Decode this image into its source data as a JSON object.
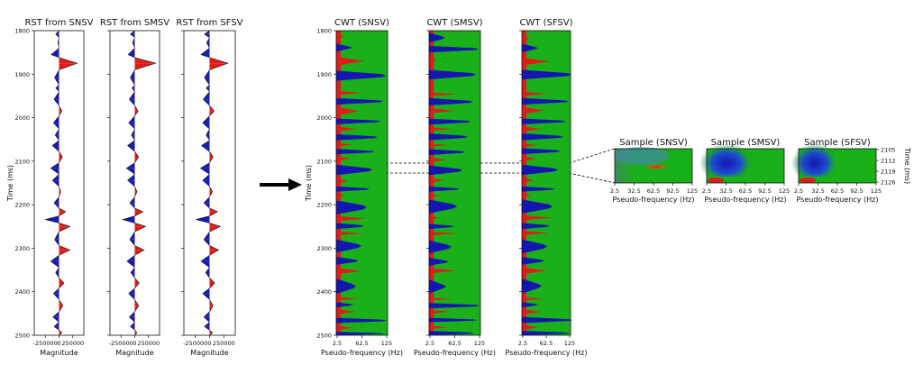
{
  "chart_data": [
    {
      "type": "line",
      "title": "RST from SNSV",
      "xlabel": "Magnitude",
      "ylabel": "Time (ms)",
      "xticks": [
        "-250000",
        "0",
        "250000"
      ],
      "yticks": [
        "1800",
        "1900",
        "2000",
        "2100",
        "2200",
        "2300",
        "2400",
        "2500"
      ],
      "xlim": [
        -450000,
        450000
      ],
      "ylim": [
        2500,
        1800
      ],
      "fill_colors": {
        "positive": "#e01b1b",
        "negative": "#1a1ab8"
      },
      "series": [
        {
          "x": [
            0,
            -60000,
            0,
            -20000,
            0,
            -140000,
            0,
            330000,
            0,
            -80000,
            0,
            -60000,
            0,
            -90000,
            0,
            50000,
            0,
            -100000,
            0,
            -70000,
            0,
            -120000,
            0,
            60000,
            0,
            -150000,
            0,
            -120000,
            0,
            30000,
            0,
            -90000,
            0,
            120000,
            0,
            -250000,
            0,
            200000,
            0,
            -80000,
            0,
            200000,
            0,
            -150000,
            0,
            -60000,
            0,
            90000,
            0,
            -100000,
            0,
            70000,
            0,
            -110000,
            0,
            -90000,
            0,
            50000,
            0
          ],
          "y": [
            1800,
            1808,
            1816,
            1828,
            1840,
            1855,
            1862,
            1875,
            1890,
            1908,
            1925,
            1932,
            1940,
            1958,
            1972,
            1985,
            1996,
            2012,
            2026,
            2040,
            2052,
            2064,
            2078,
            2090,
            2104,
            2116,
            2130,
            2144,
            2158,
            2170,
            2182,
            2196,
            2208,
            2216,
            2226,
            2234,
            2242,
            2250,
            2262,
            2280,
            2294,
            2304,
            2316,
            2330,
            2344,
            2356,
            2368,
            2380,
            2392,
            2404,
            2418,
            2432,
            2446,
            2458,
            2470,
            2480,
            2488,
            2494,
            2500
          ]
        }
      ]
    },
    {
      "type": "line",
      "title": "RST from SMSV",
      "xlabel": "Magnitude",
      "xticks": [
        "-250000",
        "0",
        "250000"
      ],
      "xlim": [
        -450000,
        450000
      ],
      "ylim": [
        2500,
        1800
      ],
      "series": [
        {
          "x": [
            0,
            -80000,
            0,
            -40000,
            0,
            -120000,
            0,
            380000,
            0,
            -80000,
            0,
            -50000,
            0,
            -100000,
            0,
            60000,
            0,
            -110000,
            0,
            -60000,
            0,
            -130000,
            0,
            70000,
            0,
            -150000,
            0,
            -130000,
            0,
            40000,
            0,
            -90000,
            0,
            150000,
            0,
            -220000,
            0,
            200000,
            0,
            -90000,
            0,
            170000,
            0,
            -140000,
            0,
            -70000,
            0,
            80000,
            0,
            -110000,
            0,
            70000,
            0,
            -100000,
            0,
            -80000,
            0,
            40000,
            0
          ],
          "y": [
            1800,
            1808,
            1816,
            1828,
            1840,
            1855,
            1862,
            1875,
            1890,
            1908,
            1925,
            1932,
            1940,
            1958,
            1972,
            1985,
            1996,
            2012,
            2026,
            2040,
            2052,
            2064,
            2078,
            2090,
            2104,
            2116,
            2130,
            2144,
            2158,
            2170,
            2182,
            2196,
            2208,
            2216,
            2226,
            2234,
            2242,
            2250,
            2262,
            2280,
            2294,
            2304,
            2316,
            2330,
            2344,
            2356,
            2368,
            2380,
            2392,
            2404,
            2418,
            2432,
            2446,
            2458,
            2470,
            2480,
            2488,
            2494,
            2500
          ]
        }
      ]
    },
    {
      "type": "line",
      "title": "RST from SFSV",
      "xlabel": "Magnitude",
      "xticks": [
        "-250000",
        "0",
        "250000"
      ],
      "xlim": [
        -450000,
        450000
      ],
      "ylim": [
        2500,
        1800
      ],
      "series": [
        {
          "x": [
            0,
            -90000,
            0,
            -50000,
            0,
            -150000,
            0,
            320000,
            0,
            -90000,
            0,
            -60000,
            0,
            -110000,
            0,
            80000,
            0,
            -120000,
            0,
            -60000,
            0,
            -140000,
            0,
            60000,
            0,
            -160000,
            0,
            -120000,
            0,
            50000,
            0,
            -100000,
            0,
            140000,
            0,
            -240000,
            0,
            190000,
            0,
            -100000,
            0,
            160000,
            0,
            -150000,
            0,
            -70000,
            0,
            90000,
            0,
            -120000,
            0,
            60000,
            0,
            -100000,
            0,
            -90000,
            0,
            50000,
            0
          ],
          "y": [
            1800,
            1808,
            1816,
            1828,
            1840,
            1855,
            1862,
            1875,
            1890,
            1908,
            1925,
            1932,
            1940,
            1958,
            1972,
            1985,
            1996,
            2012,
            2026,
            2040,
            2052,
            2064,
            2078,
            2090,
            2104,
            2116,
            2130,
            2144,
            2158,
            2170,
            2182,
            2196,
            2208,
            2216,
            2226,
            2234,
            2242,
            2250,
            2262,
            2280,
            2294,
            2304,
            2316,
            2330,
            2344,
            2356,
            2368,
            2380,
            2392,
            2404,
            2418,
            2432,
            2446,
            2458,
            2470,
            2480,
            2488,
            2494,
            2500
          ]
        }
      ]
    },
    {
      "type": "heatmap",
      "title": "CWT (SNSV)",
      "xlabel": "Pseudo-frequency (Hz)",
      "ylabel": "Time (ms)",
      "xticks": [
        "2.5",
        "62.5",
        "125"
      ],
      "yticks": [
        "1800",
        "1900",
        "2000",
        "2100",
        "2200",
        "2300",
        "2400",
        "2500"
      ],
      "colormap": [
        "#1515b0",
        "#19b019",
        "#e01b1b"
      ],
      "red_bands_ms": [
        [
          1805,
          1822
        ],
        [
          1860,
          1880
        ],
        [
          1938,
          1948
        ],
        [
          1975,
          1995
        ],
        [
          2020,
          2032
        ],
        [
          2058,
          2066
        ],
        [
          2088,
          2100
        ],
        [
          2140,
          2152
        ],
        [
          2175,
          2182
        ],
        [
          2226,
          2238
        ],
        [
          2262,
          2270
        ],
        [
          2345,
          2360
        ],
        [
          2412,
          2420
        ],
        [
          2440,
          2452
        ],
        [
          2478,
          2488
        ]
      ],
      "blue_bands_ms": [
        [
          1830,
          1848
        ],
        [
          1892,
          1915
        ],
        [
          1955,
          1970
        ],
        [
          2002,
          2015
        ],
        [
          2038,
          2052
        ],
        [
          2072,
          2084
        ],
        [
          2108,
          2132
        ],
        [
          2158,
          2170
        ],
        [
          2190,
          2222
        ],
        [
          2242,
          2256
        ],
        [
          2280,
          2310
        ],
        [
          2320,
          2338
        ],
        [
          2370,
          2405
        ],
        [
          2424,
          2436
        ],
        [
          2460,
          2472
        ],
        [
          2492,
          2500
        ]
      ]
    },
    {
      "type": "heatmap",
      "title": "CWT (SMSV)",
      "xlabel": "Pseudo-frequency (Hz)",
      "xticks": [
        "2.5",
        "62.5",
        "125"
      ],
      "colormap": [
        "#1515b0",
        "#19b019",
        "#e01b1b"
      ],
      "red_bands_ms": [
        [
          1858,
          1878
        ],
        [
          1942,
          1950
        ],
        [
          1978,
          1990
        ],
        [
          2022,
          2030
        ],
        [
          2060,
          2066
        ],
        [
          2092,
          2102
        ],
        [
          2138,
          2150
        ],
        [
          2176,
          2182
        ],
        [
          2224,
          2236
        ],
        [
          2262,
          2270
        ],
        [
          2346,
          2358
        ],
        [
          2414,
          2420
        ],
        [
          2442,
          2450
        ],
        [
          2478,
          2486
        ]
      ],
      "blue_bands_ms": [
        [
          1805,
          1828
        ],
        [
          1835,
          1850
        ],
        [
          1890,
          1912
        ],
        [
          1955,
          1972
        ],
        [
          2002,
          2016
        ],
        [
          2036,
          2052
        ],
        [
          2072,
          2086
        ],
        [
          2110,
          2132
        ],
        [
          2158,
          2170
        ],
        [
          2188,
          2220
        ],
        [
          2244,
          2256
        ],
        [
          2282,
          2312
        ],
        [
          2322,
          2340
        ],
        [
          2372,
          2404
        ],
        [
          2426,
          2438
        ],
        [
          2460,
          2470
        ],
        [
          2490,
          2500
        ]
      ]
    },
    {
      "type": "heatmap",
      "title": "CWT (SFSV)",
      "xlabel": "Pseudo-frequency (Hz)",
      "xticks": [
        "2.5",
        "62.5",
        "125"
      ],
      "colormap": [
        "#1515b0",
        "#19b019",
        "#e01b1b"
      ],
      "red_bands_ms": [
        [
          1812,
          1826
        ],
        [
          1862,
          1880
        ],
        [
          1940,
          1950
        ],
        [
          1975,
          1992
        ],
        [
          2020,
          2032
        ],
        [
          2060,
          2066
        ],
        [
          2088,
          2100
        ],
        [
          2138,
          2150
        ],
        [
          2174,
          2182
        ],
        [
          2224,
          2236
        ],
        [
          2260,
          2270
        ],
        [
          2344,
          2360
        ],
        [
          2412,
          2420
        ],
        [
          2440,
          2452
        ],
        [
          2476,
          2488
        ]
      ],
      "blue_bands_ms": [
        [
          1830,
          1850
        ],
        [
          1890,
          1912
        ],
        [
          1955,
          1970
        ],
        [
          2002,
          2015
        ],
        [
          2036,
          2052
        ],
        [
          2070,
          2084
        ],
        [
          2108,
          2132
        ],
        [
          2158,
          2170
        ],
        [
          2188,
          2220
        ],
        [
          2242,
          2256
        ],
        [
          2280,
          2312
        ],
        [
          2320,
          2338
        ],
        [
          2370,
          2404
        ],
        [
          2424,
          2436
        ],
        [
          2458,
          2472
        ],
        [
          2490,
          2500
        ]
      ]
    },
    {
      "type": "heatmap",
      "title": "Sample (SNSV)",
      "xlabel": "Pseudo-frequency (Hz)",
      "xticks": [
        "2.5",
        "32.5",
        "62.5",
        "92.5",
        "125"
      ],
      "colormap": [
        "#1515b0",
        "#19b019",
        "#e01b1b"
      ]
    },
    {
      "type": "heatmap",
      "title": "Sample (SMSV)",
      "xlabel": "Pseudo-frequency (Hz)",
      "xticks": [
        "2.5",
        "32.5",
        "62.5",
        "92.5",
        "125"
      ],
      "colormap": [
        "#1515b0",
        "#19b019",
        "#e01b1b"
      ]
    },
    {
      "type": "heatmap",
      "title": "Sample (SFSV)",
      "xlabel": "Pseudo-frequency (Hz)",
      "ylabel": "Time (ms)",
      "xticks": [
        "2.5",
        "32.5",
        "62.5",
        "92.5",
        "125"
      ],
      "yticks": [
        "2105",
        "2112",
        "2119",
        "2126"
      ],
      "colormap": [
        "#1515b0",
        "#19b019",
        "#e01b1b"
      ]
    }
  ]
}
